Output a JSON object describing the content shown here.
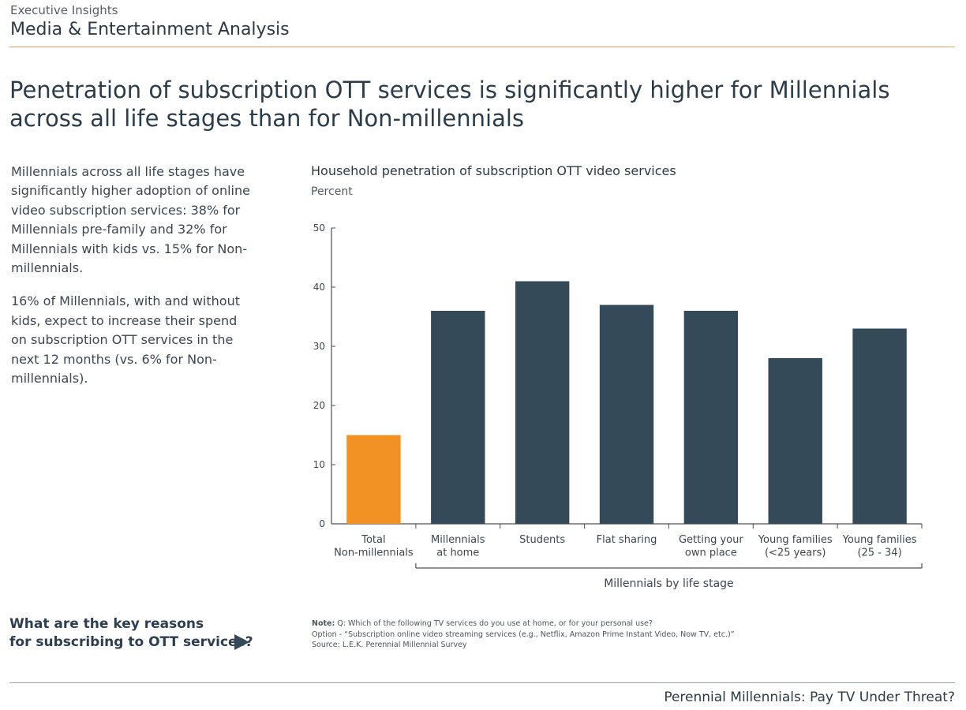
{
  "header": {
    "kicker": "Executive Insights",
    "title": "Media & Entertainment Analysis"
  },
  "headline": {
    "line1": "Penetration of subscription OTT services is significantly higher for Millennials",
    "line2": "across all life stages than for Non-millennials"
  },
  "body": {
    "p1": "Millennials across all life stages have\nsignificantly higher adoption of online\nvideo subscription services: 38% for\nMillennials pre-family and 32% for\nMillennials with kids vs. 15% for Non-\nmillennials.",
    "p2": "16% of Millennials, with and without\nkids, expect to increase their spend\non subscription OTT services in the\nnext 12 months (vs. 6% for Non-\nmillennials)."
  },
  "cta": {
    "line1": "What are the key reasons",
    "line2": "for subscribing to OTT services?",
    "arrow_icon": "play-arrow-icon"
  },
  "colors": {
    "accent_orange": "#f39224",
    "bar_dark": "#344a59",
    "header_rule": "#e3a15a"
  },
  "chart_data": {
    "type": "bar",
    "title": "Household penetration of subscription OTT video services",
    "ylabel": "Percent",
    "ylim": [
      0,
      50
    ],
    "yticks": [
      0,
      10,
      20,
      30,
      40,
      50
    ],
    "categories": [
      [
        "Total",
        "Non-millennials"
      ],
      [
        "Millennials",
        "at home"
      ],
      [
        "Students"
      ],
      [
        "Flat sharing"
      ],
      [
        "Getting your",
        "own place"
      ],
      [
        "Young families",
        "(<25 years)"
      ],
      [
        "Young families",
        "(25 - 34)"
      ]
    ],
    "values": [
      15,
      36,
      41,
      37,
      36,
      28,
      33
    ],
    "bar_colors": [
      "#f39224",
      "#344a59",
      "#344a59",
      "#344a59",
      "#344a59",
      "#344a59",
      "#344a59"
    ],
    "group_label": "Millennials by life stage",
    "grid": false
  },
  "notes": {
    "note_label": "Note:",
    "note_text": " Q: Which of the following TV services do you use at home, or for your personal use?",
    "option": "Option - “Subscription online video streaming services (e.g., Netflix, Amazon Prime Instant Video, Now TV, etc.)”",
    "source": "Source: L.E.K. Perennial Millennial Survey"
  },
  "footer": {
    "title": "Perennial Millennials: Pay TV Under Threat?"
  }
}
